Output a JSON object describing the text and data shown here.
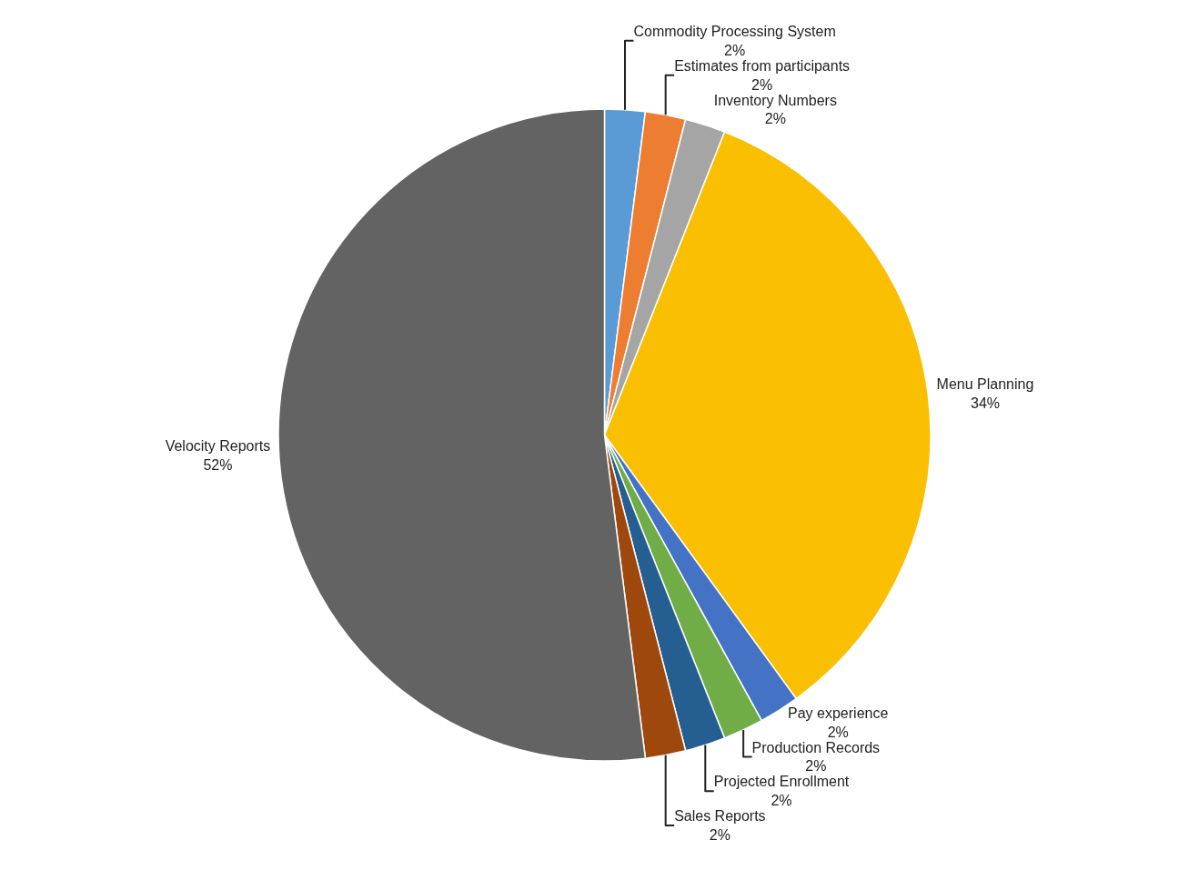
{
  "chart_data": {
    "type": "pie",
    "categories": [
      "Commodity Processing System",
      "Estimates from participants",
      "Inventory Numbers",
      "Menu Planning",
      "Pay experience",
      "Production Records",
      "Projected Enrollment",
      "Sales Reports",
      "Velocity Reports"
    ],
    "values": [
      2,
      2,
      2,
      34,
      2,
      2,
      2,
      2,
      52
    ],
    "value_labels": [
      "2%",
      "2%",
      "2%",
      "34%",
      "2%",
      "2%",
      "2%",
      "2%",
      "52%"
    ],
    "colors": [
      "#5b9bd5",
      "#ed7d31",
      "#a5a5a5",
      "#f9bf00",
      "#4472c4",
      "#70ad47",
      "#255e91",
      "#9e480e",
      "#636363"
    ],
    "legend": false
  }
}
